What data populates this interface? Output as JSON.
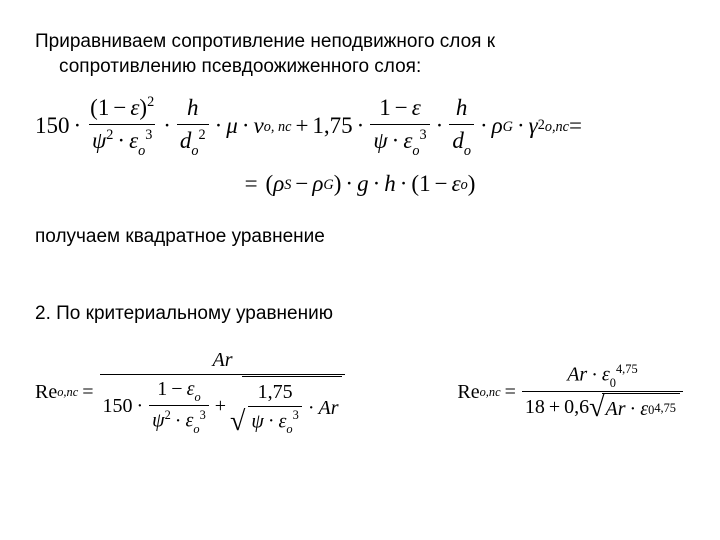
{
  "para1_line1": "Приравниваем сопротивление неподвижного слоя к",
  "para1_line2": "сопротивлению псевдоожиженного слоя:",
  "para2": "получаем квадратное уравнение",
  "para3": "2. По критериальному уравнению",
  "eq": {
    "c150": "150",
    "c175": "1,75",
    "c18": "18",
    "c06": "0,6",
    "p475": "4,75",
    "one": "1",
    "eps": "ε",
    "eps0": "ε",
    "psi": "ψ",
    "h": "h",
    "d": "d",
    "mu": "μ",
    "v": "ν",
    "rho": "ρ",
    "rhoS": "ρ",
    "rhoG": "ρ",
    "g": "g",
    "Ar": "Ar",
    "Re": "Re",
    "sub_o": "о",
    "sub_onc": "о,пс",
    "sub_onc2": "о, пс",
    "sub_S": "S",
    "sub_G": "G",
    "sub0": "0",
    "lp": "(",
    "rp": ")",
    "minus": "−",
    "dot": "·",
    "plus": "+",
    "eq_": "=",
    "sq2": "2",
    "sq3": "3",
    "gamma": "γ"
  }
}
